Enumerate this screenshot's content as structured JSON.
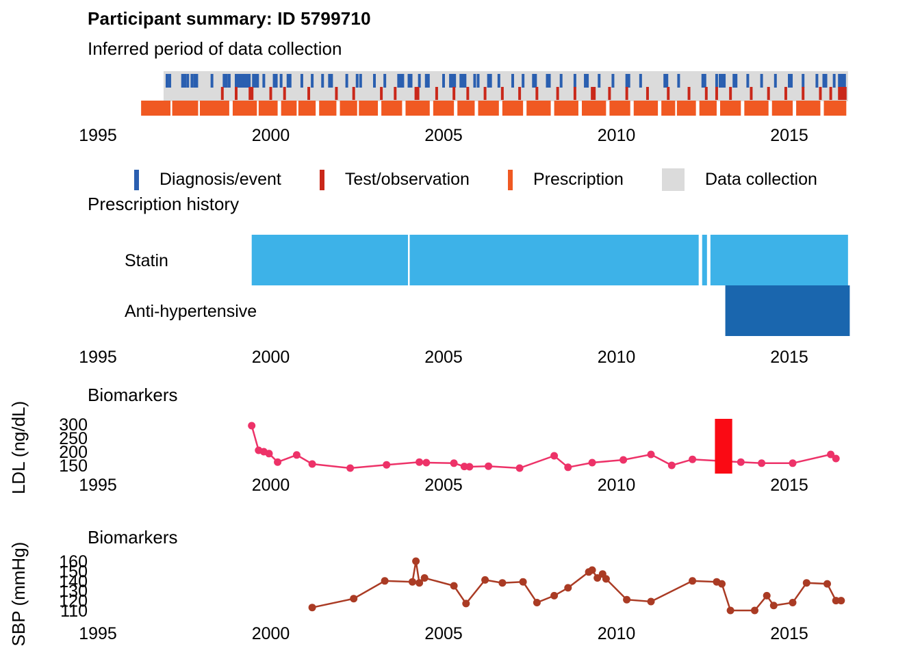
{
  "page": {
    "title": "Participant summary: ID 5799710",
    "subtitle": "Inferred period of data collection",
    "prescription_heading": "Prescription history"
  },
  "legend": {
    "items": [
      {
        "label": "Diagnosis/event",
        "color": "#2A5FB0",
        "glyph": "tick"
      },
      {
        "label": "Test/observation",
        "color": "#C9281A",
        "glyph": "tick"
      },
      {
        "label": "Prescription",
        "color": "#F05922",
        "glyph": "tick"
      },
      {
        "label": "Data collection",
        "color": "#DBDBDB",
        "glyph": "square"
      }
    ]
  },
  "chart_data": [
    {
      "id": "timeline",
      "type": "scatter",
      "subtype": "event-rug-timeline",
      "title": "Inferred period of data collection",
      "x_axis": {
        "ticks": [
          1995,
          2000,
          2005,
          2010,
          2015
        ],
        "range": [
          1994.5,
          2017.0
        ]
      },
      "data_collection_period": [
        1996.9,
        2016.7
      ],
      "data_collection_color": "#DBDBDB",
      "series": [
        {
          "name": "Diagnosis/event",
          "color": "#2A5FB0",
          "x": [
            1997.0,
            1997.08,
            1997.45,
            1997.52,
            1997.6,
            1997.72,
            1997.8,
            1997.86,
            1998.3,
            1998.65,
            1998.72,
            1998.8,
            1999.0,
            1999.06,
            1999.12,
            1999.18,
            1999.25,
            1999.32,
            1999.38,
            1999.5,
            1999.56,
            1999.62,
            1999.8,
            2000.1,
            2000.16,
            2000.3,
            2000.5,
            2000.56,
            2000.9,
            2001.2,
            2001.5,
            2001.7,
            2001.76,
            2002.2,
            2002.5,
            2002.6,
            2003.0,
            2003.3,
            2003.7,
            2003.76,
            2003.82,
            2004.0,
            2004.06,
            2004.3,
            2004.5,
            2004.56,
            2005.0,
            2005.2,
            2005.26,
            2005.32,
            2005.5,
            2005.56,
            2005.62,
            2005.9,
            2006.0,
            2006.3,
            2006.36,
            2006.6,
            2007.0,
            2007.3,
            2007.6,
            2007.66,
            2008.0,
            2008.06,
            2008.4,
            2008.8,
            2009.1,
            2009.16,
            2009.5,
            2009.9,
            2010.3,
            2010.36,
            2010.7,
            2011.4,
            2011.46,
            2011.8,
            2012.5,
            2012.56,
            2012.9,
            2013.0,
            2013.06,
            2013.12,
            2013.4,
            2013.46,
            2013.8,
            2014.2,
            2014.6,
            2015.0,
            2015.06,
            2015.4,
            2015.8,
            2016.0,
            2016.06,
            2016.3,
            2016.45,
            2016.5,
            2016.55,
            2016.6
          ]
        },
        {
          "name": "Test/observation",
          "color": "#C9281A",
          "x": [
            1998.6,
            1999.0,
            1999.4,
            1999.46,
            2000.0,
            2000.4,
            2001.1,
            2001.9,
            2002.4,
            2003.2,
            2003.6,
            2004.2,
            2004.26,
            2004.8,
            2005.3,
            2005.7,
            2006.2,
            2006.7,
            2007.2,
            2007.7,
            2008.3,
            2008.8,
            2009.3,
            2009.36,
            2009.8,
            2010.3,
            2010.9,
            2011.5,
            2012.1,
            2012.6,
            2012.9,
            2013.3,
            2013.9,
            2014.4,
            2014.9,
            2015.4,
            2015.9,
            2016.2,
            2016.45,
            2016.5,
            2016.56,
            2016.62
          ]
        },
        {
          "name": "Prescription",
          "color": "#F05922",
          "segments": [
            [
              1996.25,
              1997.1
            ],
            [
              1997.15,
              1997.9
            ],
            [
              1997.95,
              1998.8
            ],
            [
              1998.9,
              1999.6
            ],
            [
              1999.65,
              2000.2
            ],
            [
              2000.3,
              2000.75
            ],
            [
              2000.8,
              2001.3
            ],
            [
              2001.4,
              2001.9
            ],
            [
              2002.0,
              2002.5
            ],
            [
              2002.55,
              2003.1
            ],
            [
              2003.2,
              2003.8
            ],
            [
              2003.9,
              2004.6
            ],
            [
              2004.7,
              2005.3
            ],
            [
              2005.4,
              2005.9
            ],
            [
              2006.0,
              2006.6
            ],
            [
              2006.7,
              2007.3
            ],
            [
              2007.4,
              2008.1
            ],
            [
              2008.2,
              2008.9
            ],
            [
              2009.0,
              2009.7
            ],
            [
              2009.8,
              2010.4
            ],
            [
              2010.5,
              2011.2
            ],
            [
              2011.3,
              2011.7
            ],
            [
              2011.75,
              2012.3
            ],
            [
              2012.4,
              2012.9
            ],
            [
              2013.0,
              2013.6
            ],
            [
              2013.7,
              2014.4
            ],
            [
              2014.5,
              2015.1
            ],
            [
              2015.2,
              2015.9
            ],
            [
              2016.0,
              2016.65
            ]
          ]
        }
      ]
    },
    {
      "id": "prescriptions",
      "type": "bar",
      "subtype": "gantt",
      "title": "Prescription history",
      "x_axis": {
        "ticks": [
          1995,
          2000,
          2005,
          2010,
          2015
        ],
        "range": [
          1994.5,
          2017.0
        ]
      },
      "rows": [
        {
          "label": "Statin",
          "color": "#3DB2E8",
          "segments": [
            [
              1999.45,
              2003.97
            ],
            [
              2004.02,
              2012.38
            ],
            [
              2012.48,
              2012.62
            ],
            [
              2012.72,
              2016.7
            ]
          ]
        },
        {
          "label": "Anti-hypertensive",
          "color": "#1A66AE",
          "segments": [
            [
              2013.15,
              2016.75
            ]
          ]
        }
      ]
    },
    {
      "id": "ldl",
      "type": "line",
      "title": "Biomarkers",
      "ylabel": "LDL (ng/dL)",
      "color": "#ED3268",
      "x_axis": {
        "ticks": [
          1995,
          2000,
          2005,
          2010,
          2015
        ],
        "range": [
          1994.5,
          2017.0
        ]
      },
      "y_axis": {
        "ticks": [
          300,
          250,
          200,
          150
        ],
        "range": [
          130,
          310
        ]
      },
      "points": [
        [
          1999.45,
          295
        ],
        [
          1999.65,
          205
        ],
        [
          1999.8,
          200
        ],
        [
          1999.95,
          193
        ],
        [
          2000.2,
          162
        ],
        [
          2000.75,
          188
        ],
        [
          2001.2,
          155
        ],
        [
          2002.3,
          140
        ],
        [
          2003.35,
          152
        ],
        [
          2004.3,
          162
        ],
        [
          2004.5,
          160
        ],
        [
          2005.3,
          158
        ],
        [
          2005.6,
          146
        ],
        [
          2005.75,
          145
        ],
        [
          2006.3,
          147
        ],
        [
          2007.2,
          140
        ],
        [
          2008.2,
          185
        ],
        [
          2008.6,
          143
        ],
        [
          2009.3,
          160
        ],
        [
          2010.2,
          170
        ],
        [
          2011.0,
          190
        ],
        [
          2011.6,
          150
        ],
        [
          2012.2,
          172
        ],
        [
          2013.6,
          162
        ],
        [
          2014.2,
          158
        ],
        [
          2015.1,
          158
        ],
        [
          2016.2,
          190
        ],
        [
          2016.35,
          175
        ]
      ],
      "event_bar": {
        "x_range": [
          2012.85,
          2013.35
        ],
        "color": "#FA0A14"
      }
    },
    {
      "id": "sbp",
      "type": "line",
      "title": "Biomarkers",
      "ylabel": "SBP (mmHg)",
      "color": "#AA3B24",
      "x_axis": {
        "ticks": [
          1995,
          2000,
          2005,
          2010,
          2015
        ],
        "range": [
          1994.5,
          2017.0
        ]
      },
      "y_axis": {
        "ticks": [
          160,
          150,
          140,
          130,
          120,
          110
        ],
        "range": [
          107,
          163
        ]
      },
      "points": [
        [
          2001.2,
          113
        ],
        [
          2002.4,
          122
        ],
        [
          2003.3,
          140
        ],
        [
          2004.1,
          139
        ],
        [
          2004.2,
          160
        ],
        [
          2004.3,
          138
        ],
        [
          2004.45,
          143
        ],
        [
          2005.3,
          135
        ],
        [
          2005.65,
          117
        ],
        [
          2006.2,
          141
        ],
        [
          2006.7,
          138
        ],
        [
          2007.3,
          139
        ],
        [
          2007.7,
          118
        ],
        [
          2008.2,
          125
        ],
        [
          2008.6,
          133
        ],
        [
          2009.2,
          149
        ],
        [
          2009.3,
          151
        ],
        [
          2009.45,
          143
        ],
        [
          2009.6,
          147
        ],
        [
          2009.7,
          142
        ],
        [
          2010.3,
          121
        ],
        [
          2011.0,
          119
        ],
        [
          2012.2,
          140
        ],
        [
          2012.9,
          139
        ],
        [
          2013.05,
          137
        ],
        [
          2013.3,
          110
        ],
        [
          2014.0,
          110
        ],
        [
          2014.35,
          125
        ],
        [
          2014.55,
          115
        ],
        [
          2015.1,
          118
        ],
        [
          2015.5,
          138
        ],
        [
          2016.1,
          137
        ],
        [
          2016.35,
          120
        ],
        [
          2016.5,
          120
        ]
      ]
    }
  ]
}
